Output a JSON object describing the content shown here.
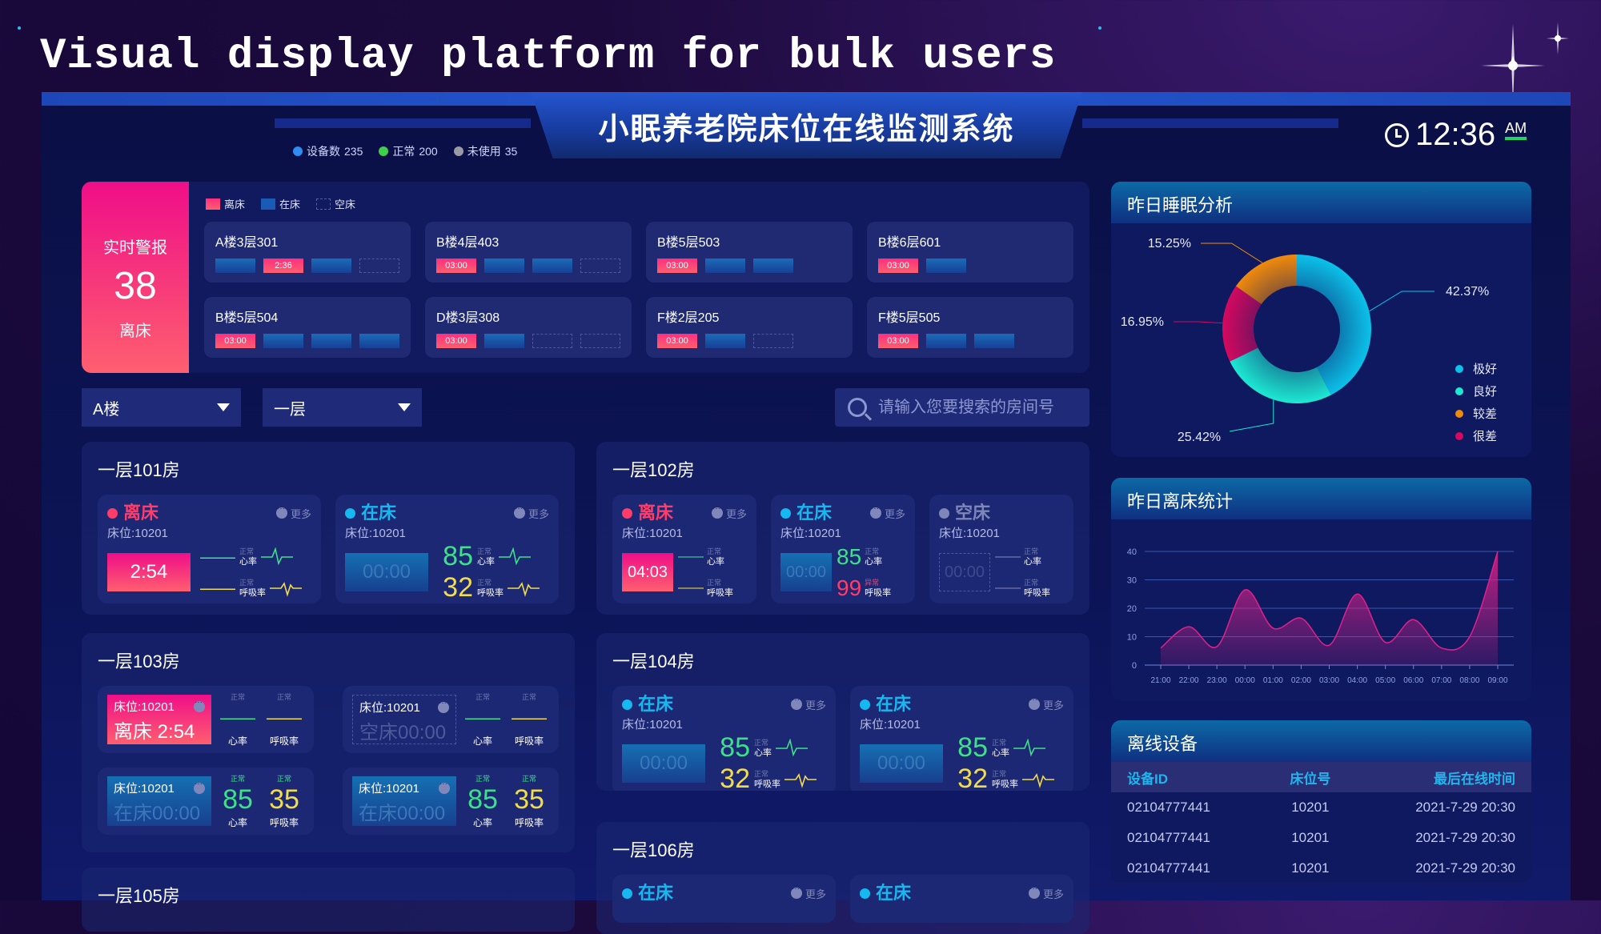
{
  "page_title": "Visual display platform for bulk users",
  "header": {
    "system_title": "小眠养老院床位在线监测系统",
    "stats": [
      {
        "label": "设备数",
        "value": "235",
        "color": "#2f8cf0"
      },
      {
        "label": "正常",
        "value": "200",
        "color": "#3ed04a"
      },
      {
        "label": "未使用",
        "value": "35",
        "color": "#9a9aa6"
      }
    ],
    "clock": {
      "time": "12:36",
      "ampm": "AM"
    }
  },
  "alert": {
    "title": "实时警报",
    "count": "38",
    "subtitle": "离床",
    "legend": [
      {
        "type": "leave",
        "label": "离床"
      },
      {
        "type": "in",
        "label": "在床"
      },
      {
        "type": "empty",
        "label": "空床"
      }
    ],
    "rooms": [
      {
        "name": "A楼3层301",
        "beds": [
          {
            "type": "in"
          },
          {
            "type": "leave",
            "time": "2:36"
          },
          {
            "type": "in"
          },
          {
            "type": "empty"
          }
        ]
      },
      {
        "name": "B楼4层403",
        "beds": [
          {
            "type": "leave",
            "time": "03:00"
          },
          {
            "type": "in"
          },
          {
            "type": "in"
          },
          {
            "type": "empty"
          }
        ]
      },
      {
        "name": "B楼5层503",
        "beds": [
          {
            "type": "leave",
            "time": "03:00"
          },
          {
            "type": "in"
          },
          {
            "type": "in"
          }
        ]
      },
      {
        "name": "B楼6层601",
        "beds": [
          {
            "type": "leave",
            "time": "03:00"
          },
          {
            "type": "in"
          }
        ]
      },
      {
        "name": "B楼5层504",
        "beds": [
          {
            "type": "leave",
            "time": "03:00"
          },
          {
            "type": "in"
          },
          {
            "type": "in"
          },
          {
            "type": "in"
          }
        ]
      },
      {
        "name": "D楼3层308",
        "beds": [
          {
            "type": "leave",
            "time": "03:00"
          },
          {
            "type": "in"
          },
          {
            "type": "empty"
          },
          {
            "type": "empty"
          }
        ]
      },
      {
        "name": "F楼2层205",
        "beds": [
          {
            "type": "leave",
            "time": "03:00"
          },
          {
            "type": "in"
          },
          {
            "type": "empty"
          }
        ]
      },
      {
        "name": "F楼5层505",
        "beds": [
          {
            "type": "leave",
            "time": "03:00"
          },
          {
            "type": "in"
          },
          {
            "type": "in"
          }
        ]
      }
    ]
  },
  "filters": {
    "building": "A楼",
    "floor": "一层",
    "search_placeholder": "请输入您要搜索的房间号"
  },
  "rooms": [
    {
      "title": "一层101房",
      "layout": "full",
      "waves": true,
      "beds": [
        {
          "status": "leave",
          "status_label": "离床",
          "more": "更多",
          "bed": "床位:10201",
          "timer": "2:54",
          "hr": {
            "value": "——",
            "tag": "正常",
            "label": "心率"
          },
          "rr": {
            "value": "——",
            "tag": "正常",
            "label": "呼吸率"
          }
        },
        {
          "status": "in",
          "status_label": "在床",
          "more": "更多",
          "bed": "床位:10201",
          "timer": "00:00",
          "hr": {
            "value": "85",
            "tag": "正常",
            "label": "心率"
          },
          "rr": {
            "value": "32",
            "tag": "正常",
            "label": "呼吸率"
          }
        }
      ]
    },
    {
      "title": "一层102房",
      "layout": "full",
      "waves": false,
      "beds": [
        {
          "status": "leave",
          "status_label": "离床",
          "more": "更多",
          "bed": "床位:10201",
          "timer": "04:03",
          "hr": {
            "value": "——",
            "tag": "正常",
            "label": "心率"
          },
          "rr": {
            "value": "——",
            "tag": "正常",
            "label": "呼吸率"
          }
        },
        {
          "status": "in",
          "status_label": "在床",
          "more": "更多",
          "bed": "床位:10201",
          "timer": "00:00",
          "hr": {
            "value": "85",
            "tag": "正常",
            "label": "心率"
          },
          "rr": {
            "value": "99",
            "tag": "异常",
            "label": "呼吸率",
            "abnormal": true
          }
        },
        {
          "status": "empty",
          "status_label": "空床",
          "bed": "床位:10201",
          "timer": "00:00",
          "hr": {
            "value": "——",
            "tag": "正常",
            "label": "心率"
          },
          "rr": {
            "value": "——",
            "tag": "正常",
            "label": "呼吸率"
          }
        }
      ]
    },
    {
      "title": "一层103房",
      "layout": "compact",
      "beds": [
        {
          "status": "leave",
          "bed": "床位:10201",
          "status_label": "离床",
          "timer": "2:54",
          "hr": {
            "value": "——",
            "tag": "正常",
            "label": "心率"
          },
          "rr": {
            "value": "——",
            "tag": "正常",
            "label": "呼吸率"
          }
        },
        {
          "status": "empty",
          "bed": "床位:10201",
          "status_label": "空床",
          "timer": "00:00",
          "hr": {
            "value": "——",
            "tag": "正常",
            "label": "心率"
          },
          "rr": {
            "value": "——",
            "tag": "正常",
            "label": "呼吸率"
          }
        },
        {
          "status": "in",
          "bed": "床位:10201",
          "status_label": "在床",
          "timer": "00:00",
          "hr": {
            "value": "85",
            "tag": "正常",
            "label": "心率"
          },
          "rr": {
            "value": "35",
            "tag": "正常",
            "label": "呼吸率"
          }
        },
        {
          "status": "in",
          "bed": "床位:10201",
          "status_label": "在床",
          "timer": "00:00",
          "hr": {
            "value": "85",
            "tag": "正常",
            "label": "心率"
          },
          "rr": {
            "value": "35",
            "tag": "正常",
            "label": "呼吸率"
          }
        }
      ]
    },
    {
      "title": "一层104房",
      "layout": "full",
      "waves": true,
      "beds": [
        {
          "status": "in",
          "status_label": "在床",
          "more": "更多",
          "bed": "床位:10201",
          "timer": "00:00",
          "hr": {
            "value": "85",
            "tag": "正常",
            "label": "心率"
          },
          "rr": {
            "value": "32",
            "tag": "正常",
            "label": "呼吸率"
          }
        },
        {
          "status": "in",
          "status_label": "在床",
          "more": "更多",
          "bed": "床位:10201",
          "timer": "00:00",
          "hr": {
            "value": "85",
            "tag": "正常",
            "label": "心率"
          },
          "rr": {
            "value": "32",
            "tag": "正常",
            "label": "呼吸率"
          }
        }
      ]
    },
    {
      "title": "一层105房",
      "layout": "full",
      "beds": []
    },
    {
      "title": "一层106房",
      "layout": "full",
      "waves": true,
      "beds": [
        {
          "status": "in",
          "status_label": "在床",
          "more": "更多"
        },
        {
          "status": "in",
          "status_label": "在床",
          "more": "更多"
        }
      ]
    }
  ],
  "sleep": {
    "title": "昨日睡眠分析"
  },
  "leave_stats": {
    "title": "昨日离床统计"
  },
  "offline": {
    "title": "离线设备",
    "columns": [
      "设备ID",
      "床位号",
      "最后在线时间"
    ],
    "rows": [
      [
        "02104777441",
        "10201",
        "2021-7-29 20:30"
      ],
      [
        "02104777441",
        "10201",
        "2021-7-29 20:30"
      ],
      [
        "02104777441",
        "10201",
        "2021-7-29 20:30"
      ]
    ]
  },
  "colors": {
    "leave": "#ff3c6a",
    "in": "#16b8f0",
    "empty": "#7f86b8",
    "heart": "#3ee08a",
    "resp": "#f0dc4c"
  },
  "chart_data": [
    {
      "type": "pie",
      "donut": true,
      "title": "昨日睡眠分析",
      "slices": [
        {
          "label": "极好",
          "value": 42.37,
          "color": "#0bc2ea"
        },
        {
          "label": "良好",
          "value": 25.42,
          "color": "#1de9d3"
        },
        {
          "label": "很差",
          "value": 16.95,
          "color": "#d4095f"
        },
        {
          "label": "较差",
          "value": 15.25,
          "color": "#f08a0c"
        }
      ],
      "legend": [
        "极好",
        "良好",
        "较差",
        "很差"
      ],
      "legend_position": "bottom-right",
      "value_format": "percent"
    },
    {
      "type": "area",
      "title": "昨日离床统计",
      "x": [
        "21:00",
        "22:00",
        "23:00",
        "00:00",
        "01:00",
        "02:00",
        "03:00",
        "04:00",
        "05:00",
        "06:00",
        "07:00",
        "08:00",
        "09:00"
      ],
      "values": [
        6,
        13.5,
        6.5,
        26.5,
        13,
        16.5,
        7,
        25,
        8,
        16,
        6,
        10,
        40
      ],
      "ylim": [
        0,
        40
      ],
      "yticks": [
        0,
        10,
        20,
        30,
        40
      ],
      "grid": true,
      "color": "#e0218a"
    }
  ]
}
